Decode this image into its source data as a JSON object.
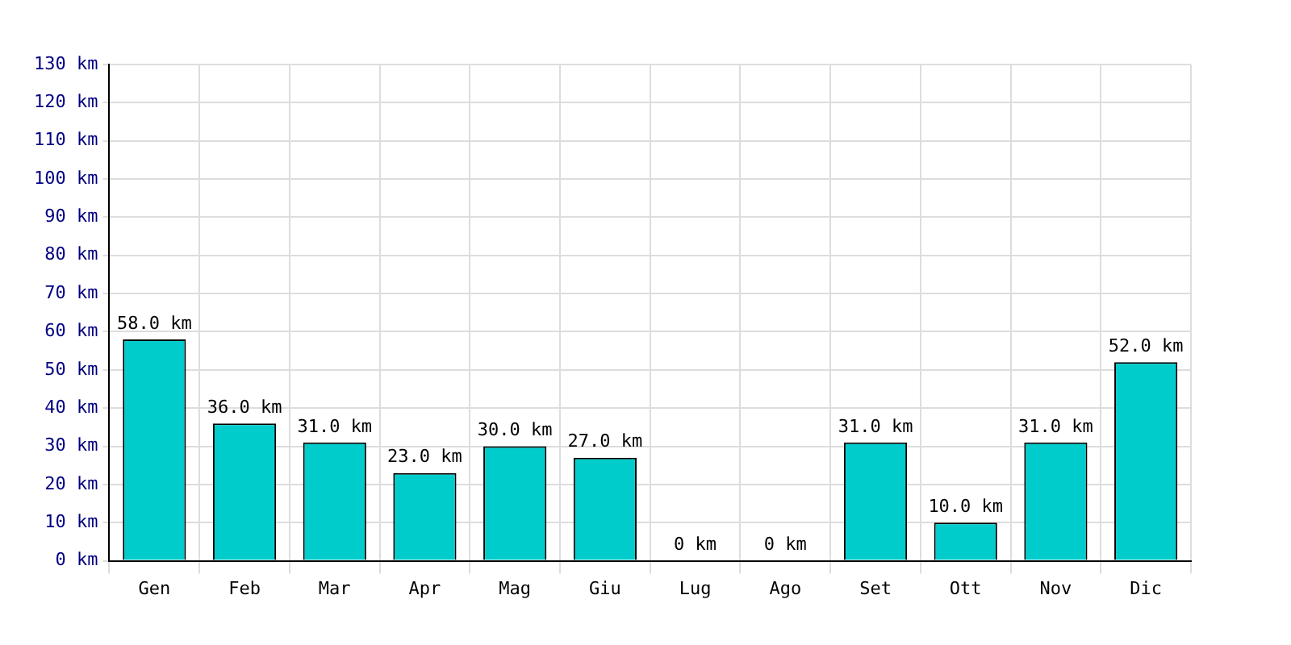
{
  "chart_data": {
    "type": "bar",
    "categories": [
      "Gen",
      "Feb",
      "Mar",
      "Apr",
      "Mag",
      "Giu",
      "Lug",
      "Ago",
      "Set",
      "Ott",
      "Nov",
      "Dic"
    ],
    "values": [
      58,
      36,
      31,
      23,
      30,
      27,
      0,
      0,
      31,
      10,
      31,
      52
    ],
    "value_labels": [
      "58.0 km",
      "36.0 km",
      "31.0 km",
      "23.0 km",
      "30.0 km",
      "27.0 km",
      "0 km",
      "0 km",
      "31.0 km",
      "10.0 km",
      "31.0 km",
      "52.0 km"
    ],
    "color": "#00cccc",
    "ylim": [
      0,
      130
    ],
    "yticks": [
      {
        "value": 0,
        "label": "0 km"
      },
      {
        "value": 10,
        "label": "10 km"
      },
      {
        "value": 20,
        "label": "20 km"
      },
      {
        "value": 30,
        "label": "30 km"
      },
      {
        "value": 40,
        "label": "40 km"
      },
      {
        "value": 50,
        "label": "50 km"
      },
      {
        "value": 60,
        "label": "60 km"
      },
      {
        "value": 70,
        "label": "70 km"
      },
      {
        "value": 80,
        "label": "80 km"
      },
      {
        "value": 90,
        "label": "90 km"
      },
      {
        "value": 100,
        "label": "100 km"
      },
      {
        "value": 110,
        "label": "110 km"
      },
      {
        "value": 120,
        "label": "120 km"
      },
      {
        "value": 130,
        "label": "130 km"
      }
    ],
    "grid": true
  }
}
